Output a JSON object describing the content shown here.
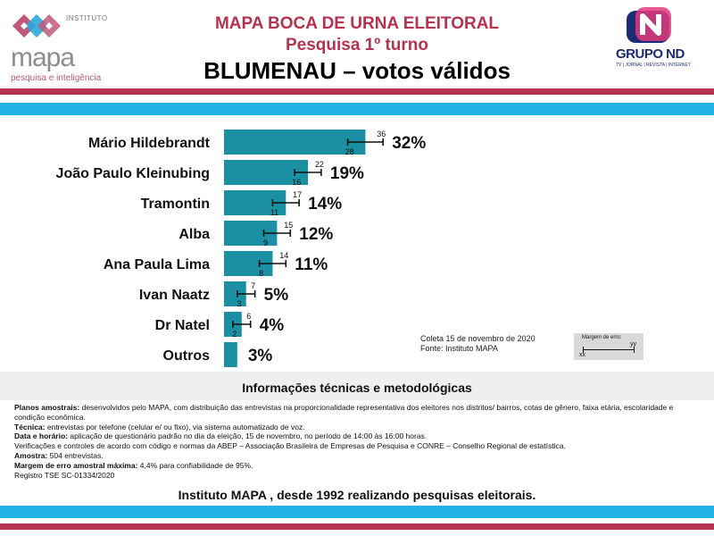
{
  "header": {
    "line1": "MAPA BOCA DE URNA ELEITORAL",
    "line2": "Pesquisa 1º turno",
    "line3": "BLUMENAU – votos válidos"
  },
  "logos": {
    "left": {
      "top": "INSTITUTO",
      "word": "mapa",
      "tagline": "pesquisa e inteligência"
    },
    "right": {
      "word": "GRUPO ND",
      "sub": "TV | JORNAL | REVISTA | INTERNET"
    }
  },
  "colors": {
    "bar": "#1b8fa3",
    "brand_red": "#b5334f",
    "brand_cyan": "#21b3e3"
  },
  "chart_data": {
    "type": "bar",
    "orientation": "horizontal",
    "categories": [
      "Mário Hildebrandt",
      "João Paulo Kleinubing",
      "Tramontin",
      "Alba",
      "Ana Paula Lima",
      "Ivan Naatz",
      "Dr Natel",
      "Outros"
    ],
    "values": [
      32,
      19,
      14,
      12,
      11,
      5,
      4,
      3
    ],
    "value_labels": [
      "32%",
      "19%",
      "14%",
      "12%",
      "11%",
      "5%",
      "4%",
      "3%"
    ],
    "error_low": [
      28,
      16,
      11,
      9,
      8,
      3,
      2,
      null
    ],
    "error_high": [
      36,
      22,
      17,
      15,
      14,
      7,
      6,
      null
    ],
    "unit": "%",
    "grid": false
  },
  "notes": {
    "collect": "Coleta 15 de novembro de 2020",
    "source": "Fonte: Instituto MAPA",
    "moe_legend_title": "Margem de erro:",
    "moe_legend_low": "xx",
    "moe_legend_high": "yy"
  },
  "info": {
    "title": "Informações técnicas e metodológicas",
    "planos_label": "Planos amostrais:",
    "planos_text": " desenvolvidos pelo MAPA, com distribuição das entrevistas na proporcionalidade representativa dos eleitores nos distritos/ bairros, cotas de gênero, faixa etária, escolaridade e condição econômica.",
    "tecnica_label": "Técnica:",
    "tecnica_text": " entrevistas por telefone (celular e/ ou fixo), via sistema automatizado de voz.",
    "data_label": "Data e horário:",
    "data_text": " aplicação de questionário padrão no dia da eleição, 15 de novembro, no período de 14:00 às 16:00 horas.",
    "verificacoes": "Verificações e controles de acordo com código e normas da ABEP – Associação Brasileira de Empresas de Pesquisa  e CONRE – Conselho Regional de estatística.",
    "amostra_label": "Amostra:",
    "amostra_text": " 504 entrevistas.",
    "margem_label": "Margem de erro amostral máxima:",
    "margem_text": " 4,4% para confiabilidade de 95%.",
    "registro": "Registro TSE SC-01334/2020"
  },
  "footer": "Instituto MAPA , desde 1992 realizando pesquisas eleitorais."
}
